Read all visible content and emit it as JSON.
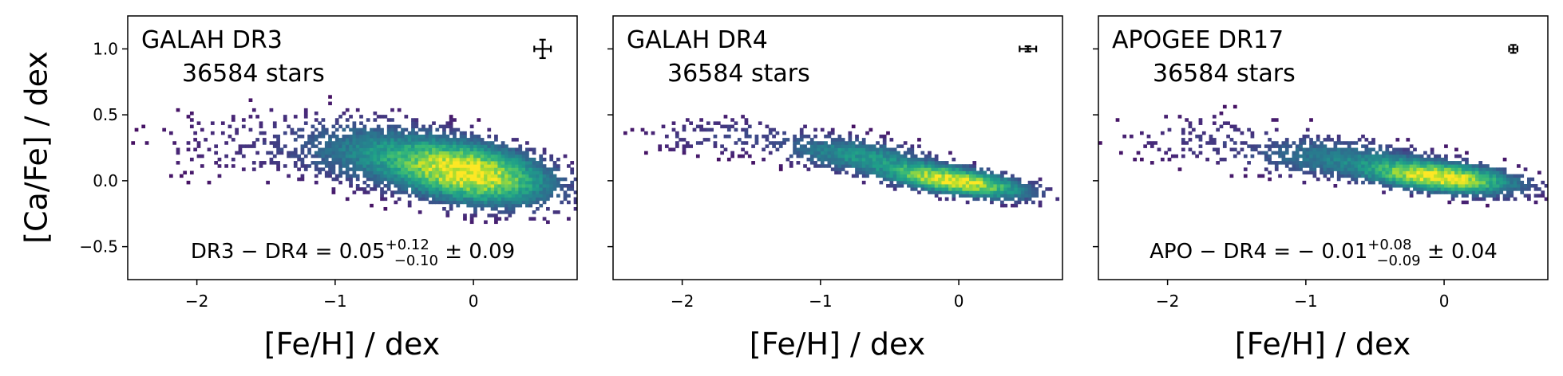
{
  "ylabel": "[Ca/Fe] / dex",
  "colormap": "viridis",
  "colors": {
    "frame": "#000000",
    "background": "#ffffff"
  },
  "chart_data": [
    {
      "type": "heatmap",
      "title": "GALAH DR3",
      "subtitle": "36584 stars",
      "xlabel": "[Fe/H] / dex",
      "ylabel": "[Ca/Fe] / dex",
      "xlim": [
        -2.5,
        0.75
      ],
      "ylim": [
        -0.75,
        1.25
      ],
      "xticks": [
        -2,
        -1,
        0
      ],
      "xtick_labels": [
        "−2",
        "−1",
        "0"
      ],
      "yticks": [
        -0.5,
        0.0,
        0.5,
        1.0
      ],
      "ytick_labels": [
        "−0.5",
        "0.0",
        "0.5",
        "1.0"
      ],
      "errorbar": {
        "x": 0.5,
        "y": 1.0,
        "xerr": 0.06,
        "yerr": 0.07
      },
      "annotation": {
        "prefix": "DR3 − DR4 = 0.05",
        "sup": "+0.12",
        "sub": "−0.10",
        "suffix": " ± 0.09"
      },
      "density_components": [
        {
          "mx": -0.05,
          "my": 0.05,
          "sx": 0.32,
          "sy": 0.13,
          "rho": -0.35,
          "weight": 1.0
        },
        {
          "mx": -0.7,
          "my": 0.2,
          "sx": 0.35,
          "sy": 0.14,
          "rho": -0.2,
          "weight": 0.22
        },
        {
          "mx": -1.6,
          "my": 0.27,
          "sx": 0.45,
          "sy": 0.18,
          "rho": 0.0,
          "weight": 0.03
        }
      ],
      "seed": 11
    },
    {
      "type": "heatmap",
      "title": "GALAH DR4",
      "subtitle": "36584 stars",
      "xlabel": "[Fe/H] / dex",
      "ylabel": "",
      "xlim": [
        -2.5,
        0.75
      ],
      "ylim": [
        -0.75,
        1.25
      ],
      "xticks": [
        -2,
        -1,
        0
      ],
      "xtick_labels": [
        "−2",
        "−1",
        "0"
      ],
      "yticks": [
        -0.5,
        0.0,
        0.5,
        1.0
      ],
      "ytick_labels": [],
      "errorbar": {
        "x": 0.5,
        "y": 1.0,
        "xerr": 0.06,
        "yerr": 0.02
      },
      "annotation": null,
      "density_components": [
        {
          "mx": -0.05,
          "my": -0.01,
          "sx": 0.28,
          "sy": 0.07,
          "rho": -0.6,
          "weight": 1.0
        },
        {
          "mx": -0.75,
          "my": 0.18,
          "sx": 0.3,
          "sy": 0.08,
          "rho": -0.4,
          "weight": 0.3
        },
        {
          "mx": -1.7,
          "my": 0.33,
          "sx": 0.35,
          "sy": 0.08,
          "rho": 0.0,
          "weight": 0.06
        }
      ],
      "seed": 23
    },
    {
      "type": "heatmap",
      "title": "APOGEE DR17",
      "subtitle": "36584 stars",
      "xlabel": "[Fe/H] / dex",
      "ylabel": "",
      "xlim": [
        -2.5,
        0.75
      ],
      "ylim": [
        -0.75,
        1.25
      ],
      "xticks": [
        -2,
        -1,
        0
      ],
      "xtick_labels": [
        "−2",
        "−1",
        "0"
      ],
      "yticks": [
        -0.5,
        0.0,
        0.5,
        1.0
      ],
      "ytick_labels": [],
      "errorbar": {
        "x": 0.5,
        "y": 1.0,
        "xerr": 0.03,
        "yerr": 0.03
      },
      "annotation": {
        "prefix": "APO − DR4 = − 0.01",
        "sup": "+0.08",
        "sub": "−0.09",
        "suffix": " ± 0.04"
      },
      "density_components": [
        {
          "mx": -0.05,
          "my": 0.02,
          "sx": 0.3,
          "sy": 0.07,
          "rho": -0.45,
          "weight": 1.0
        },
        {
          "mx": -0.8,
          "my": 0.16,
          "sx": 0.35,
          "sy": 0.09,
          "rho": -0.2,
          "weight": 0.2
        },
        {
          "mx": -1.7,
          "my": 0.3,
          "sx": 0.4,
          "sy": 0.12,
          "rho": 0.0,
          "weight": 0.04
        }
      ],
      "seed": 37
    }
  ]
}
